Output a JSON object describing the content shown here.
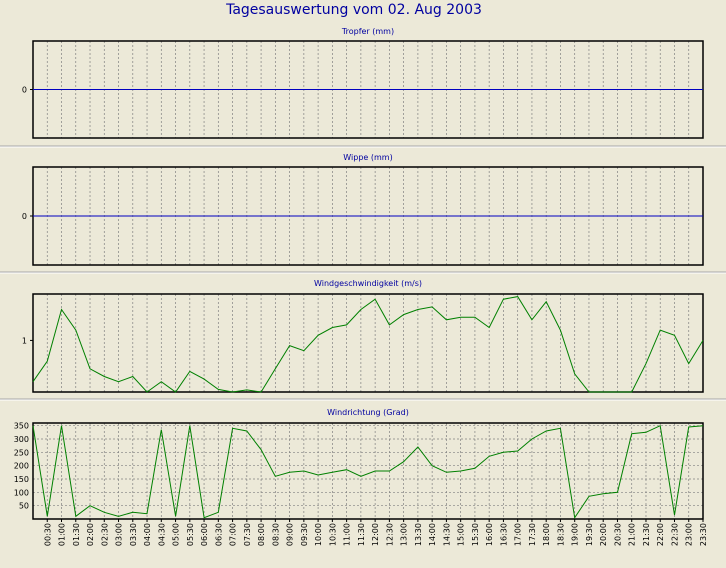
{
  "page_title": "Tagesauswertung vom 02. Aug 2003",
  "colors": {
    "background": "#ece9d8",
    "frame": "#000000",
    "title": "#0000a0",
    "zero_line": "#0000c0",
    "series": "#008000",
    "grid": "#808080",
    "separator": "#a8a8a8"
  },
  "chart_data": [
    {
      "type": "line",
      "title": "Tropfer (mm)",
      "ylim": [
        -1,
        1
      ],
      "yticks": [
        "0"
      ],
      "grid": true,
      "series": [
        {
          "values": [
            0
          ]
        }
      ]
    },
    {
      "type": "line",
      "title": "Wippe (mm)",
      "ylim": [
        -1,
        1
      ],
      "yticks": [
        "0"
      ],
      "grid": true,
      "series": [
        {
          "values": [
            0
          ]
        }
      ]
    },
    {
      "type": "line",
      "title": "Windgeschwindigkeit (m/s)",
      "ylim": [
        0,
        1.9
      ],
      "yticks": [
        "1"
      ],
      "grid": true,
      "x": [
        "00:00",
        "00:30",
        "01:00",
        "01:30",
        "02:00",
        "02:30",
        "03:00",
        "03:30",
        "04:00",
        "04:30",
        "05:00",
        "05:30",
        "06:00",
        "06:30",
        "07:00",
        "07:30",
        "08:00",
        "08:30",
        "09:00",
        "09:30",
        "10:00",
        "10:30",
        "11:00",
        "11:30",
        "12:00",
        "12:30",
        "13:00",
        "13:30",
        "14:00",
        "14:30",
        "15:00",
        "15:30",
        "16:00",
        "16:30",
        "17:00",
        "17:30",
        "18:00",
        "18:30",
        "19:00",
        "19:30",
        "20:00",
        "20:30",
        "21:00",
        "21:30",
        "22:00",
        "22:30",
        "23:00",
        "23:30"
      ],
      "series": [
        {
          "values": [
            0.2,
            0.6,
            1.6,
            1.2,
            0.45,
            0.3,
            0.2,
            0.3,
            0.0,
            0.2,
            0.0,
            0.4,
            0.25,
            0.05,
            0.0,
            0.04,
            0.0,
            0.45,
            0.9,
            0.8,
            1.1,
            1.25,
            1.3,
            1.6,
            1.8,
            1.3,
            1.5,
            1.6,
            1.65,
            1.4,
            1.45,
            1.45,
            1.25,
            1.8,
            1.85,
            1.4,
            1.75,
            1.2,
            0.35,
            0.0,
            0.0,
            0.0,
            0.0,
            0.55,
            1.2,
            1.1,
            0.55,
            1.0
          ]
        }
      ]
    },
    {
      "type": "line",
      "title": "Windrichtung (Grad)",
      "ylim": [
        0,
        360
      ],
      "yticks": [
        "350",
        "300",
        "250",
        "200",
        "150",
        "100",
        "50"
      ],
      "ytick_values": [
        350,
        300,
        250,
        200,
        150,
        100,
        50
      ],
      "grid": true,
      "x": [
        "00:00",
        "00:30",
        "01:00",
        "01:30",
        "02:00",
        "02:30",
        "03:00",
        "03:30",
        "04:00",
        "04:30",
        "05:00",
        "05:30",
        "06:00",
        "06:30",
        "07:00",
        "07:30",
        "08:00",
        "08:30",
        "09:00",
        "09:30",
        "10:00",
        "10:30",
        "11:00",
        "11:30",
        "12:00",
        "12:30",
        "13:00",
        "13:30",
        "14:00",
        "14:30",
        "15:00",
        "15:30",
        "16:00",
        "16:30",
        "17:00",
        "17:30",
        "18:00",
        "18:30",
        "19:00",
        "19:30",
        "20:00",
        "20:30",
        "21:00",
        "21:30",
        "22:00",
        "22:30",
        "23:00",
        "23:30"
      ],
      "xticks": [
        "00:30",
        "01:00",
        "01:30",
        "02:00",
        "02:30",
        "03:00",
        "03:30",
        "04:00",
        "04:30",
        "05:00",
        "05:30",
        "06:00",
        "06:30",
        "07:00",
        "07:30",
        "08:00",
        "08:30",
        "09:00",
        "09:30",
        "10:00",
        "10:30",
        "11:00",
        "11:30",
        "12:00",
        "12:30",
        "13:00",
        "13:30",
        "14:00",
        "14:30",
        "15:00",
        "15:30",
        "16:00",
        "16:30",
        "17:00",
        "17:30",
        "18:00",
        "18:30",
        "19:00",
        "19:30",
        "20:00",
        "20:30",
        "21:00",
        "21:30",
        "22:00",
        "22:30",
        "23:00",
        "23:30"
      ],
      "series": [
        {
          "values": [
            350,
            10,
            350,
            10,
            50,
            25,
            10,
            25,
            20,
            335,
            10,
            350,
            5,
            25,
            340,
            330,
            260,
            160,
            175,
            180,
            165,
            175,
            185,
            160,
            180,
            180,
            215,
            270,
            200,
            175,
            180,
            190,
            235,
            250,
            255,
            300,
            330,
            340,
            5,
            85,
            95,
            100,
            320,
            325,
            350,
            15,
            345,
            350
          ]
        }
      ]
    }
  ]
}
